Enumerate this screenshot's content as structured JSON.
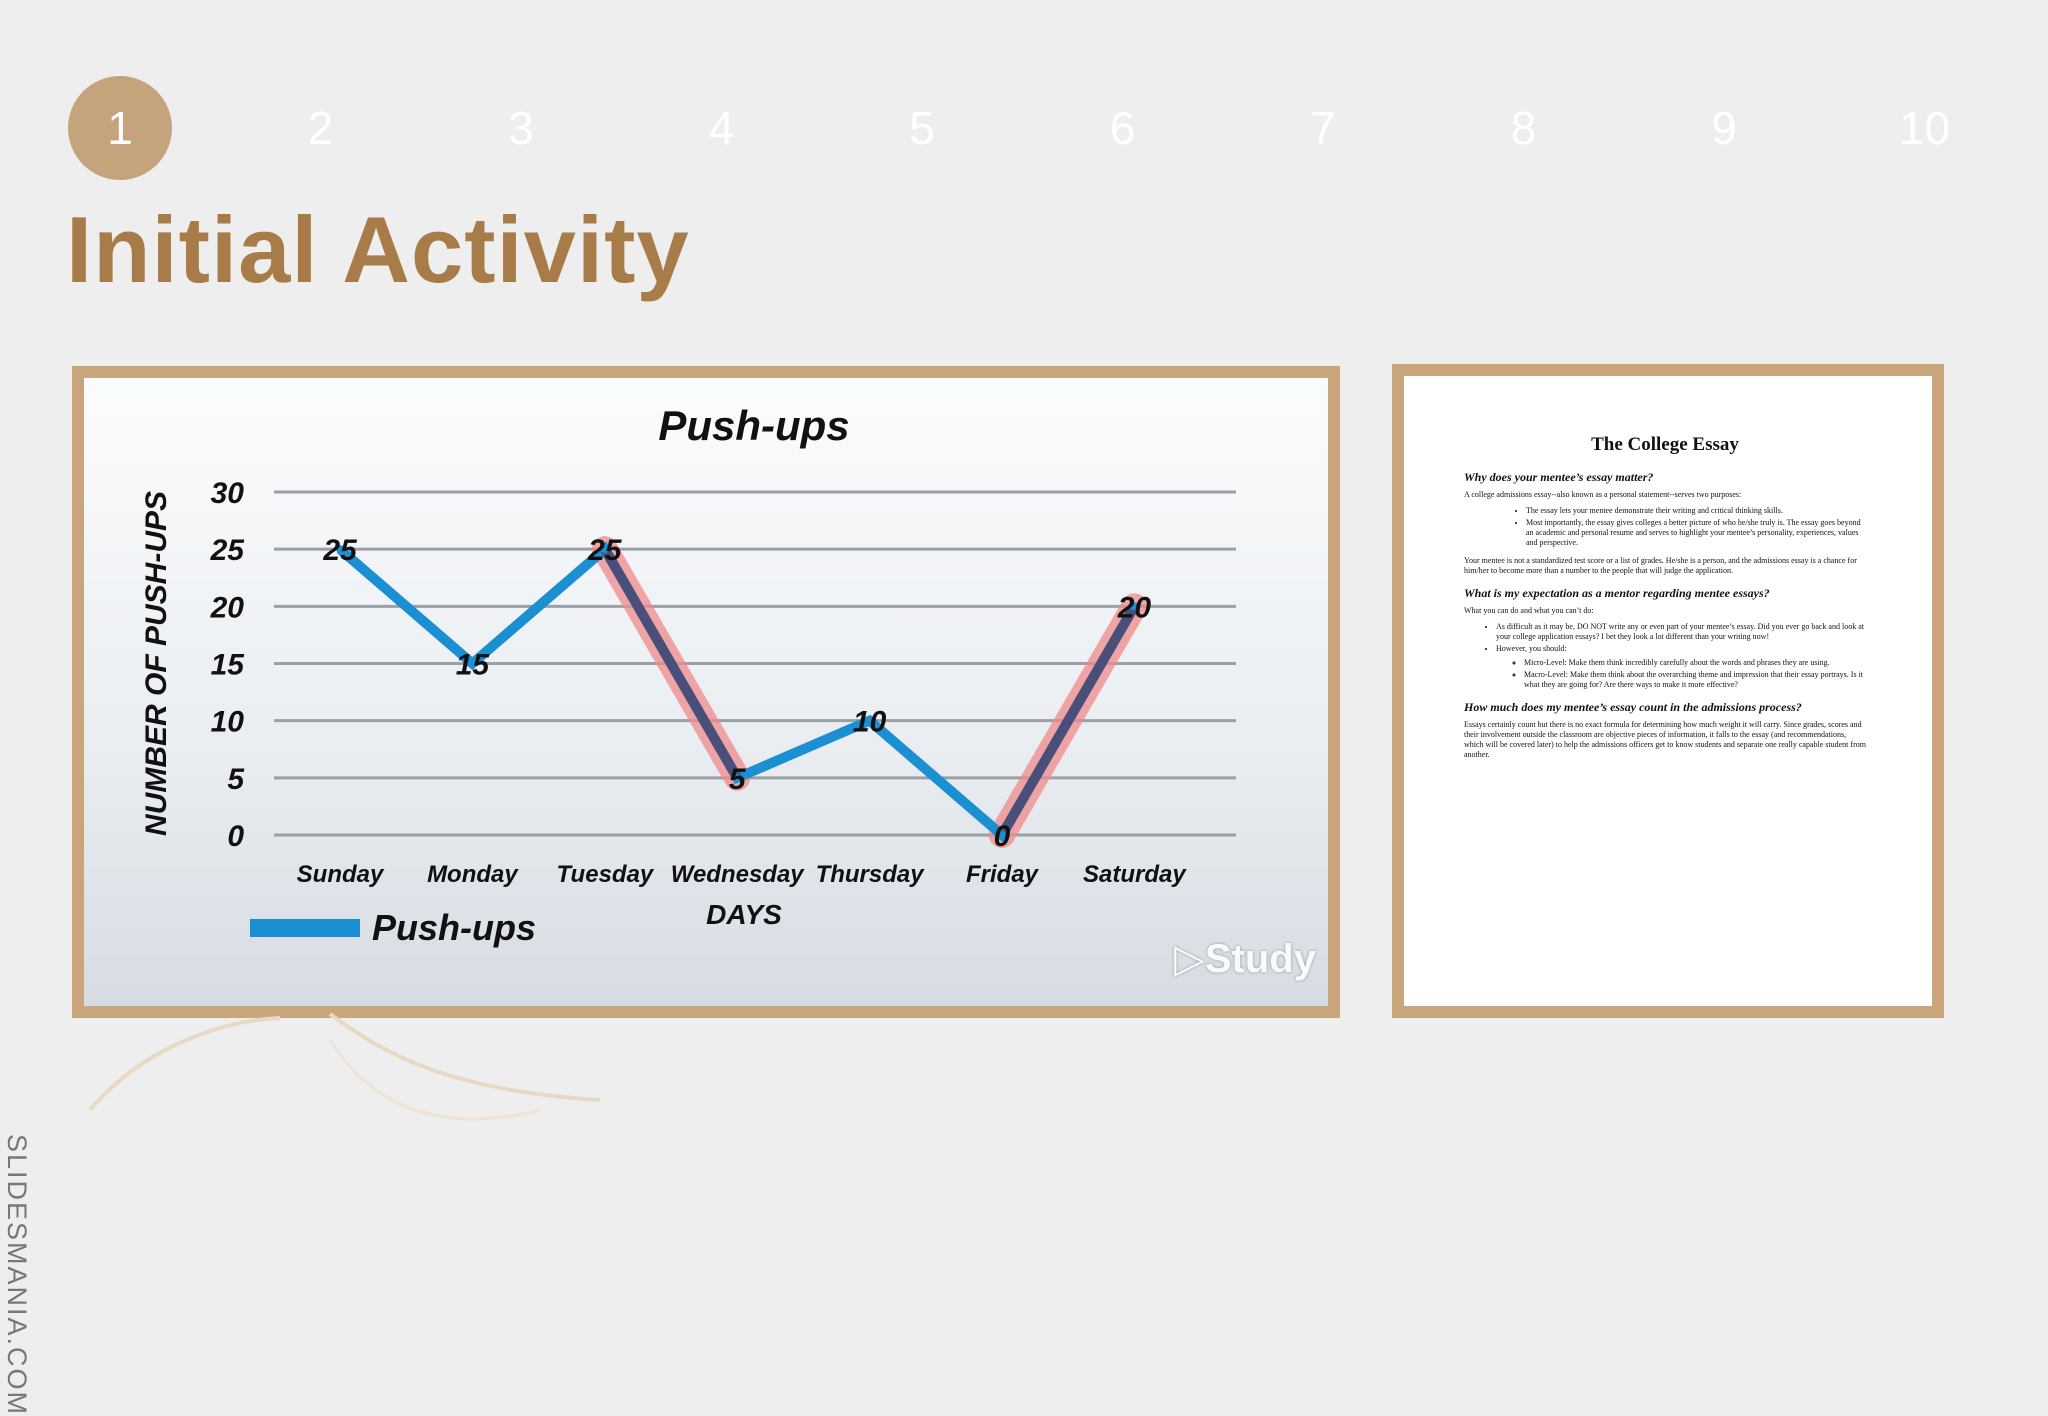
{
  "slide_nav": {
    "items": [
      {
        "label": "1",
        "active": true
      },
      {
        "label": "2",
        "active": false
      },
      {
        "label": "3",
        "active": false
      },
      {
        "label": "4",
        "active": false
      },
      {
        "label": "5",
        "active": false
      },
      {
        "label": "6",
        "active": false
      },
      {
        "label": "7",
        "active": false
      },
      {
        "label": "8",
        "active": false
      },
      {
        "label": "9",
        "active": false
      },
      {
        "label": "10",
        "active": false
      }
    ]
  },
  "slide": {
    "title": "Initial Activity",
    "side_brand": "SLIDESMANIA.COM"
  },
  "colors": {
    "accent": "#c4a37d",
    "title": "#a87c48",
    "line": "#1a8fd1",
    "highlight": "#f08a8a"
  },
  "chart_data": {
    "type": "line",
    "title": "Push-ups",
    "xlabel": "DAYS",
    "ylabel": "NUMBER OF PUSH-UPS",
    "categories": [
      "Sunday",
      "Monday",
      "Tuesday",
      "Wednesday",
      "Thursday",
      "Friday",
      "Saturday"
    ],
    "yticks": [
      "0",
      "5",
      "10",
      "15",
      "20",
      "25",
      "30"
    ],
    "ylim": [
      0,
      30
    ],
    "series": [
      {
        "name": "Push-ups",
        "values": [
          25,
          15,
          25,
          5,
          10,
          0,
          20
        ],
        "color": "#1a8fd1"
      }
    ],
    "highlighted_segments": [
      {
        "from": "Tuesday",
        "to": "Wednesday"
      },
      {
        "from": "Friday",
        "to": "Saturday"
      }
    ],
    "grid": true,
    "legend_position": "bottom-left",
    "watermark": "Study"
  },
  "document": {
    "title": "The College Essay",
    "h1": "Why does your mentee’s essay matter?",
    "intro": "A college admissions essay--also known as a personal statement--serves two purposes:",
    "bullets1": [
      "The essay lets your mentee demonstrate their writing and critical thinking skills.",
      "Most importantly, the essay gives colleges a better picture of who he/she truly is. The essay goes beyond an academic and personal resume and serves to highlight your mentee’s personality, experiences, values and perspective."
    ],
    "p2": "Your mentee is not a standardized test score or a list of grades. He/she is a person, and the admissions essay is a chance for him/her to become more than a number to the people that will judge the application.",
    "h2": "What is my expectation as a mentor regarding mentee essays?",
    "p3": "What you can do and what you can’t do:",
    "bullet2a": "As difficult as it may be, DO NOT write any or even part of your mentee’s essay. Did you ever go back and look at your college application essays? I bet they look a lot different than your writing now!",
    "bullet2b": "However, you should:",
    "sub_bullets": [
      "Micro-Level: Make them think incredibly carefully about the words and phrases they are using.",
      "Macro-Level: Make them think about the overarching theme and impression that their essay portrays. Is it what they are going for? Are there ways to make it more effective?"
    ],
    "h3": "How much does my mentee’s essay count in the admissions process?",
    "p4": "Essays certainly count but there is no exact formula for determining how much weight it will carry. Since grades, scores and their involvement outside the classroom are objective pieces of information, it falls to the essay (and recommendations, which will be covered later) to help the admissions officers get to know students and separate one really capable student from another."
  }
}
